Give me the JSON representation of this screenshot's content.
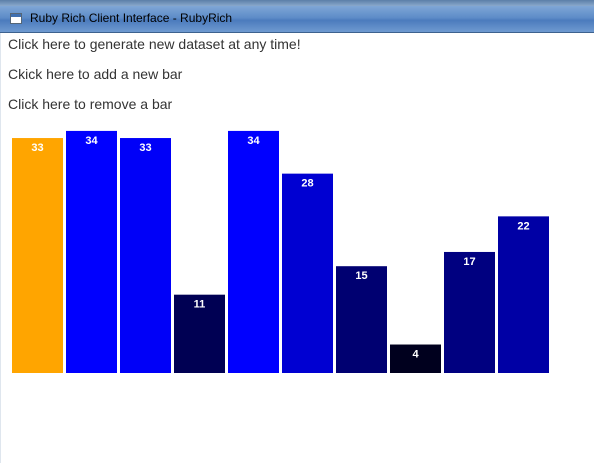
{
  "window": {
    "title": "Ruby Rich Client Interface - RubyRich"
  },
  "links": {
    "generate": "Click here to generate new dataset at any time!",
    "add": "Ckick here to add a new bar",
    "remove": "Click here to remove a bar"
  },
  "chart_data": {
    "type": "bar",
    "values": [
      33,
      34,
      33,
      11,
      34,
      28,
      15,
      4,
      17,
      22
    ],
    "highlighted_index": 0,
    "highlight_color": "#ffa500",
    "ylim": [
      0,
      34
    ]
  }
}
